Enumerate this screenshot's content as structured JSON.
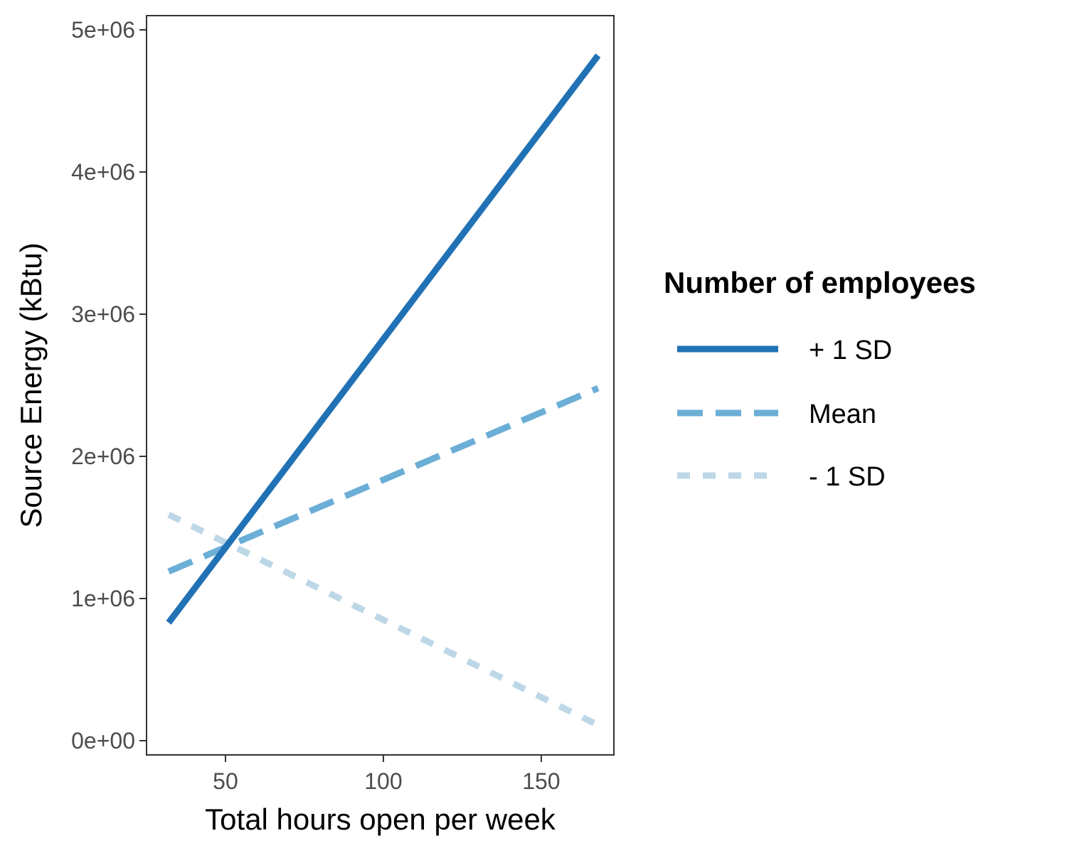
{
  "chart_data": {
    "type": "line",
    "xlabel": "Total hours open per week",
    "ylabel": "Source Energy (kBtu)",
    "xlim": [
      25,
      173
    ],
    "ylim": [
      -100000,
      5100000
    ],
    "x_ticks": [
      50,
      100,
      150
    ],
    "x_tick_labels": [
      "50",
      "100",
      "150"
    ],
    "y_ticks": [
      0,
      1000000,
      2000000,
      3000000,
      4000000,
      5000000
    ],
    "y_tick_labels": [
      "0e+00",
      "1e+06",
      "2e+06",
      "3e+06",
      "4e+06",
      "5e+06"
    ],
    "grid": false,
    "legend": {
      "title": "Number of employees",
      "placement": "right"
    },
    "series": [
      {
        "name": "+ 1 SD",
        "x": [
          32,
          168
        ],
        "y": [
          830000,
          4820000
        ],
        "color": "#2171b5",
        "dash": "solid"
      },
      {
        "name": "Mean",
        "x": [
          32,
          168
        ],
        "y": [
          1190000,
          2480000
        ],
        "color": "#6baed6",
        "dash": "dashed"
      },
      {
        "name": "- 1 SD",
        "x": [
          32,
          168
        ],
        "y": [
          1590000,
          110000
        ],
        "color": "#bdd7e7",
        "dash": "dotted"
      }
    ]
  }
}
